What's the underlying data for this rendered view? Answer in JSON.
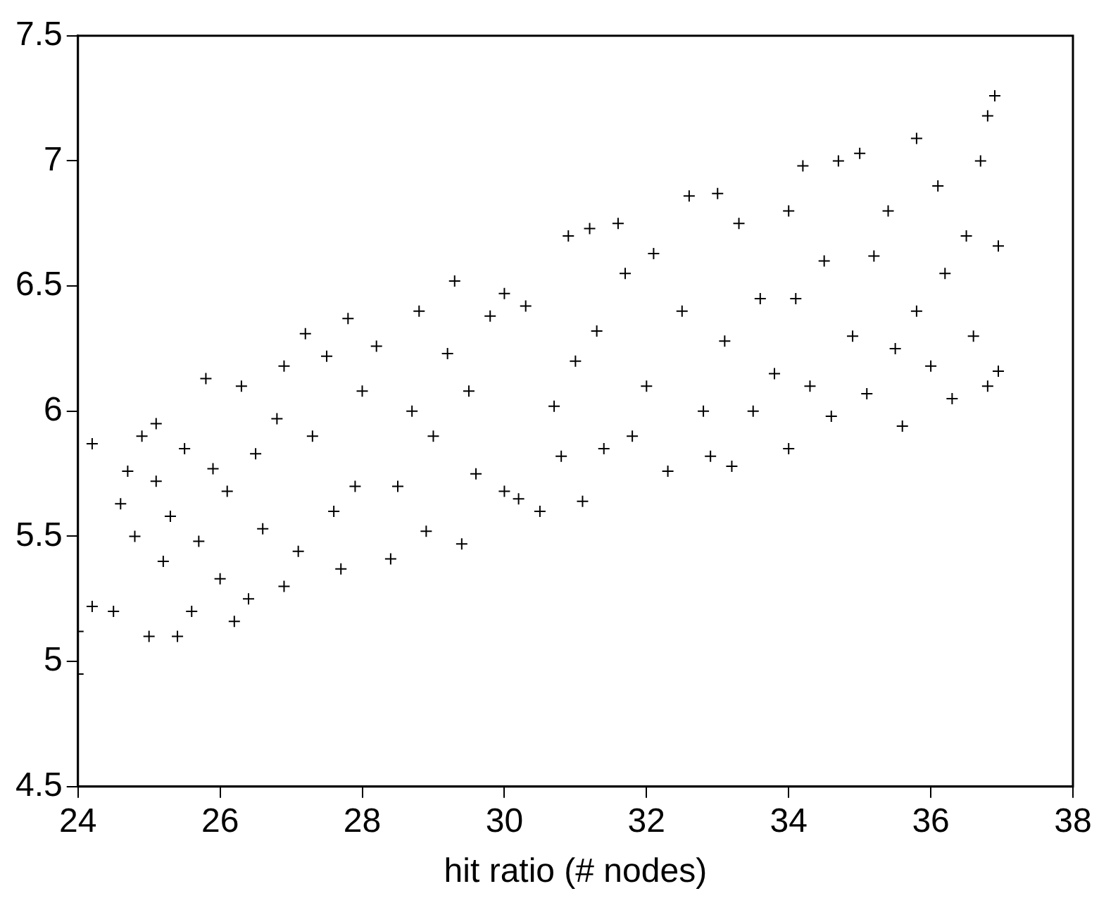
{
  "chart_data": {
    "type": "scatter",
    "xlabel": "hit ratio (# nodes)",
    "marker": "cross",
    "color": "#000000",
    "xlim": [
      24,
      38
    ],
    "xticks": [
      24,
      26,
      28,
      30,
      32,
      34,
      36,
      38
    ],
    "ylim": [
      4.5,
      7.5
    ],
    "yticks": [
      4.5,
      5,
      5.5,
      6,
      6.5,
      7,
      7.5
    ],
    "x": [
      24.0,
      24.0,
      24.2,
      24.2,
      24.5,
      24.6,
      24.7,
      24.8,
      24.9,
      25.0,
      25.1,
      25.1,
      25.2,
      25.3,
      25.4,
      25.5,
      25.6,
      25.7,
      25.8,
      25.9,
      26.0,
      26.1,
      26.2,
      26.3,
      26.4,
      26.5,
      26.6,
      26.8,
      26.9,
      26.9,
      27.1,
      27.2,
      27.3,
      27.5,
      27.6,
      27.7,
      27.8,
      27.9,
      28.0,
      28.2,
      28.4,
      28.5,
      28.7,
      28.8,
      28.9,
      29.0,
      29.2,
      29.3,
      29.4,
      29.5,
      29.6,
      29.8,
      30.0,
      30.0,
      30.2,
      30.3,
      30.5,
      30.7,
      30.8,
      30.9,
      31.0,
      31.1,
      31.2,
      31.3,
      31.4,
      31.6,
      31.7,
      31.8,
      32.0,
      32.1,
      32.3,
      32.5,
      32.6,
      32.8,
      32.9,
      33.0,
      33.1,
      33.2,
      33.3,
      33.5,
      33.6,
      33.8,
      34.0,
      34.0,
      34.1,
      34.2,
      34.3,
      34.5,
      34.6,
      34.7,
      34.9,
      35.0,
      35.1,
      35.2,
      35.4,
      35.5,
      35.6,
      35.8,
      35.8,
      36.0,
      36.1,
      36.2,
      36.3,
      36.5,
      36.6,
      36.7,
      36.8,
      36.8,
      36.9,
      36.95,
      36.95
    ],
    "values": [
      4.95,
      5.12,
      5.22,
      5.87,
      5.2,
      5.63,
      5.76,
      5.5,
      5.9,
      5.1,
      5.95,
      5.72,
      5.4,
      5.58,
      5.1,
      5.85,
      5.2,
      5.48,
      6.13,
      5.77,
      5.33,
      5.68,
      5.16,
      6.1,
      5.25,
      5.83,
      5.53,
      5.97,
      5.3,
      6.18,
      5.44,
      6.31,
      5.9,
      6.22,
      5.6,
      5.37,
      6.37,
      5.7,
      6.08,
      6.26,
      5.41,
      5.7,
      6.0,
      6.4,
      5.52,
      5.9,
      6.23,
      6.52,
      5.47,
      6.08,
      5.75,
      6.38,
      5.68,
      6.47,
      5.65,
      6.42,
      5.6,
      6.02,
      5.82,
      6.7,
      6.2,
      5.64,
      6.73,
      6.32,
      5.85,
      6.75,
      6.55,
      5.9,
      6.1,
      6.63,
      5.76,
      6.4,
      6.86,
      6.0,
      5.82,
      6.87,
      6.28,
      5.78,
      6.75,
      6.0,
      6.45,
      6.15,
      5.85,
      6.8,
      6.45,
      6.98,
      6.1,
      6.6,
      5.98,
      7.0,
      6.3,
      7.03,
      6.07,
      6.62,
      6.8,
      6.25,
      5.94,
      7.09,
      6.4,
      6.18,
      6.9,
      6.55,
      6.05,
      6.7,
      6.3,
      7.0,
      7.18,
      6.1,
      7.26,
      6.66,
      6.16
    ]
  }
}
